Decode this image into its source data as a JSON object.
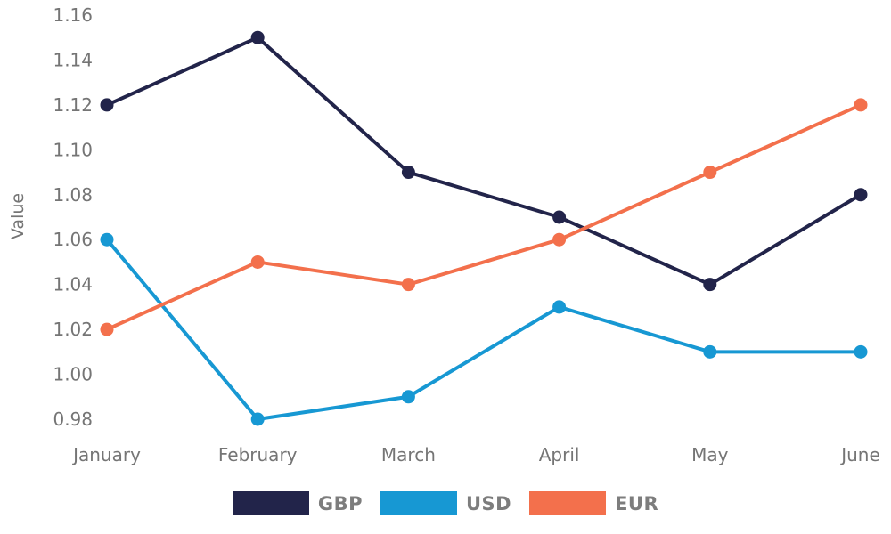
{
  "chart_data": {
    "type": "line",
    "title": "",
    "xlabel": "",
    "ylabel": "Value",
    "categories": [
      "January",
      "February",
      "March",
      "April",
      "May",
      "June"
    ],
    "series": [
      {
        "name": "GBP",
        "color": "#22244a",
        "values": [
          1.12,
          1.15,
          1.09,
          1.07,
          1.04,
          1.08
        ]
      },
      {
        "name": "USD",
        "color": "#1798d3",
        "values": [
          1.06,
          0.98,
          0.99,
          1.03,
          1.01,
          1.01
        ]
      },
      {
        "name": "EUR",
        "color": "#f3704c",
        "values": [
          1.02,
          1.05,
          1.04,
          1.06,
          1.09,
          1.12
        ]
      }
    ],
    "ylim": [
      0.98,
      1.16
    ],
    "yticks": [
      "0.98",
      "1.00",
      "1.02",
      "1.04",
      "1.06",
      "1.08",
      "1.10",
      "1.12",
      "1.14",
      "1.16"
    ],
    "grid": false,
    "legend_position": "bottom",
    "tick_text_color": "#757575",
    "legend_text_color": "#7d7d7d"
  }
}
